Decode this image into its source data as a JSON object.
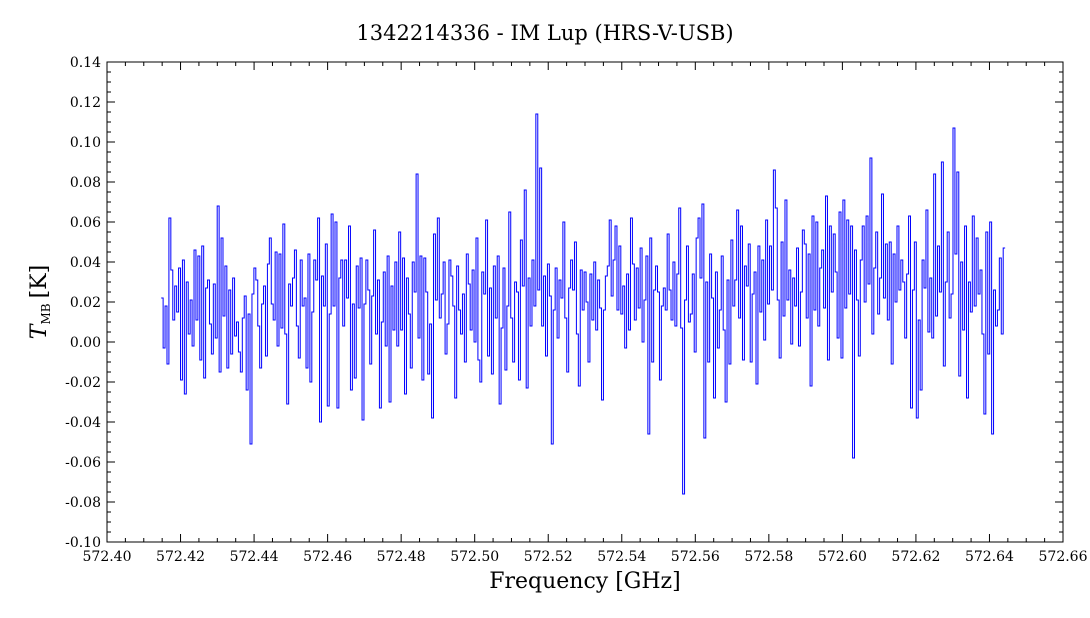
{
  "chart_data": {
    "type": "line",
    "title": "1342214336 - IM Lup (HRS-V-USB)",
    "xlabel": "Frequency [GHz]",
    "ylabel": {
      "symbol": "T",
      "subscript": "MB",
      "unit": "[K]"
    },
    "xlim": [
      572.4,
      572.66
    ],
    "ylim": [
      -0.1,
      0.14
    ],
    "x_ticks": [
      "572.40",
      "572.42",
      "572.44",
      "572.46",
      "572.48",
      "572.50",
      "572.52",
      "572.54",
      "572.56",
      "572.58",
      "572.60",
      "572.62",
      "572.64",
      "572.66"
    ],
    "y_ticks": [
      "-0.10",
      "-0.08",
      "-0.06",
      "-0.04",
      "-0.02",
      "0.00",
      "0.02",
      "0.04",
      "0.06",
      "0.08",
      "0.10",
      "0.12",
      "0.14"
    ],
    "grid": false,
    "series": [
      {
        "color": "#0000ff",
        "x_range": [
          572.415,
          572.644
        ],
        "values": [
          0.022,
          -0.003,
          0.018,
          -0.011,
          0.062,
          0.036,
          0.011,
          0.028,
          0.015,
          0.037,
          -0.019,
          0.041,
          -0.026,
          0.03,
          0.004,
          0.021,
          -0.002,
          0.046,
          0.011,
          0.043,
          -0.009,
          0.048,
          -0.018,
          0.027,
          0.031,
          0.009,
          -0.006,
          0.029,
          0.002,
          0.068,
          -0.015,
          0.052,
          0.013,
          0.038,
          -0.013,
          0.026,
          -0.006,
          0.032,
          0.003,
          0.01,
          -0.005,
          -0.015,
          0.012,
          0.023,
          -0.024,
          0.014,
          -0.051,
          0.024,
          0.037,
          0.031,
          0.008,
          -0.013,
          0.019,
          0.028,
          -0.007,
          0.039,
          0.052,
          0.019,
          0.011,
          0.045,
          -0.002,
          0.044,
          0.007,
          0.059,
          0.004,
          -0.031,
          0.029,
          0.018,
          0.032,
          0.046,
          0.008,
          -0.008,
          0.041,
          0.018,
          0.022,
          -0.013,
          0.044,
          -0.02,
          0.015,
          0.041,
          0.031,
          0.062,
          -0.04,
          0.033,
          0.018,
          0.049,
          -0.032,
          0.014,
          0.064,
          0.018,
          0.06,
          -0.033,
          0.032,
          0.041,
          0.008,
          0.041,
          0.022,
          0.058,
          -0.024,
          0.019,
          -0.018,
          0.038,
          0.017,
          0.042,
          -0.039,
          0.019,
          0.041,
          0.026,
          -0.011,
          0.023,
          0.056,
          0.004,
          0.031,
          -0.033,
          0.01,
          0.035,
          -0.002,
          0.043,
          -0.03,
          0.028,
          0.006,
          0.04,
          -0.002,
          0.055,
          0.006,
          0.042,
          -0.026,
          0.032,
          0.014,
          -0.013,
          0.04,
          0.025,
          0.084,
          0.002,
          0.043,
          -0.019,
          0.042,
          0.025,
          -0.016,
          0.009,
          -0.038,
          0.054,
          0.021,
          0.062,
          0.012,
          0.024,
          0.04,
          -0.006,
          0.009,
          0.041,
          0.033,
          0.018,
          -0.028,
          0.038,
          0.016,
          0.004,
          0.024,
          -0.01,
          0.044,
          0.029,
          0.006,
          0.036,
          0.0,
          0.052,
          -0.009,
          -0.02,
          0.035,
          0.024,
          0.061,
          -0.007,
          0.027,
          -0.016,
          0.038,
          0.012,
          0.043,
          -0.031,
          0.007,
          0.037,
          -0.014,
          0.018,
          0.065,
          0.012,
          -0.01,
          0.03,
          0.025,
          -0.019,
          0.051,
          0.028,
          0.076,
          -0.023,
          0.032,
          0.008,
          0.041,
          0.018,
          0.114,
          0.026,
          0.087,
          0.008,
          0.033,
          -0.007,
          0.039,
          0.023,
          -0.051,
          0.016,
          0.037,
          0.002,
          0.031,
          0.022,
          0.06,
          0.012,
          -0.015,
          0.027,
          0.041,
          0.026,
          0.05,
          0.004,
          -0.022,
          0.036,
          0.016,
          0.035,
          0.02,
          -0.01,
          0.034,
          0.011,
          0.04,
          0.006,
          0.031,
          0.017,
          -0.029,
          0.016,
          0.033,
          0.038,
          0.061,
          0.023,
          0.041,
          0.058,
          0.016,
          0.048,
          0.014,
          0.028,
          -0.003,
          0.034,
          0.006,
          0.062,
          0.039,
          0.011,
          0.037,
          0.017,
          0.047,
          0.0,
          0.021,
          0.043,
          -0.046,
          0.052,
          -0.01,
          0.026,
          0.038,
          0.025,
          -0.019,
          0.018,
          0.027,
          0.016,
          0.054,
          0.026,
          0.011,
          0.04,
          0.008,
          0.034,
          0.067,
          0.007,
          -0.076,
          0.021,
          0.048,
          0.01,
          0.014,
          0.034,
          -0.005,
          0.052,
          0.062,
          0.032,
          0.069,
          -0.048,
          0.03,
          -0.01,
          0.044,
          0.022,
          -0.028,
          0.035,
          -0.003,
          0.016,
          0.043,
          0.006,
          -0.03,
          0.031,
          -0.011,
          0.051,
          0.018,
          0.031,
          0.066,
          0.012,
          0.058,
          -0.009,
          0.038,
          0.028,
          0.049,
          -0.01,
          0.024,
          0.035,
          -0.021,
          0.048,
          0.015,
          0.041,
          0.001,
          0.061,
          0.019,
          0.048,
          0.026,
          0.086,
          0.067,
          0.021,
          -0.008,
          0.05,
          0.013,
          0.071,
          0.021,
          0.036,
          -0.001,
          0.032,
          0.018,
          0.047,
          -0.002,
          0.025,
          0.056,
          0.049,
          0.012,
          0.044,
          -0.022,
          0.063,
          0.016,
          0.06,
          0.008,
          0.037,
          0.046,
          0.017,
          0.073,
          -0.009,
          0.058,
          0.025,
          0.054,
          0.035,
          0.002,
          0.065,
          -0.008,
          0.071,
          0.017,
          0.061,
          0.024,
          0.058,
          -0.058,
          0.046,
          0.021,
          -0.007,
          0.041,
          0.058,
          0.02,
          0.063,
          0.029,
          0.092,
          0.004,
          0.037,
          0.055,
          0.014,
          0.032,
          0.074,
          0.022,
          0.049,
          0.011,
          0.05,
          -0.011,
          0.044,
          0.02,
          0.058,
          0.026,
          0.041,
          0.03,
          0.002,
          0.034,
          0.063,
          -0.033,
          0.026,
          0.05,
          -0.038,
          0.011,
          -0.024,
          0.041,
          0.027,
          0.066,
          0.005,
          0.032,
          0.002,
          0.084,
          0.013,
          0.048,
          0.025,
          0.09,
          -0.012,
          0.03,
          0.055,
          0.012,
          0.024,
          0.107,
          0.044,
          0.085,
          -0.017,
          0.04,
          0.006,
          0.058,
          -0.028,
          0.03,
          0.015,
          0.063,
          0.018,
          0.052,
          0.024,
          0.036,
          0.004,
          -0.036,
          0.055,
          -0.006,
          0.06,
          -0.046,
          0.026,
          0.008,
          0.016,
          0.042,
          0.004,
          0.047
        ]
      }
    ]
  }
}
